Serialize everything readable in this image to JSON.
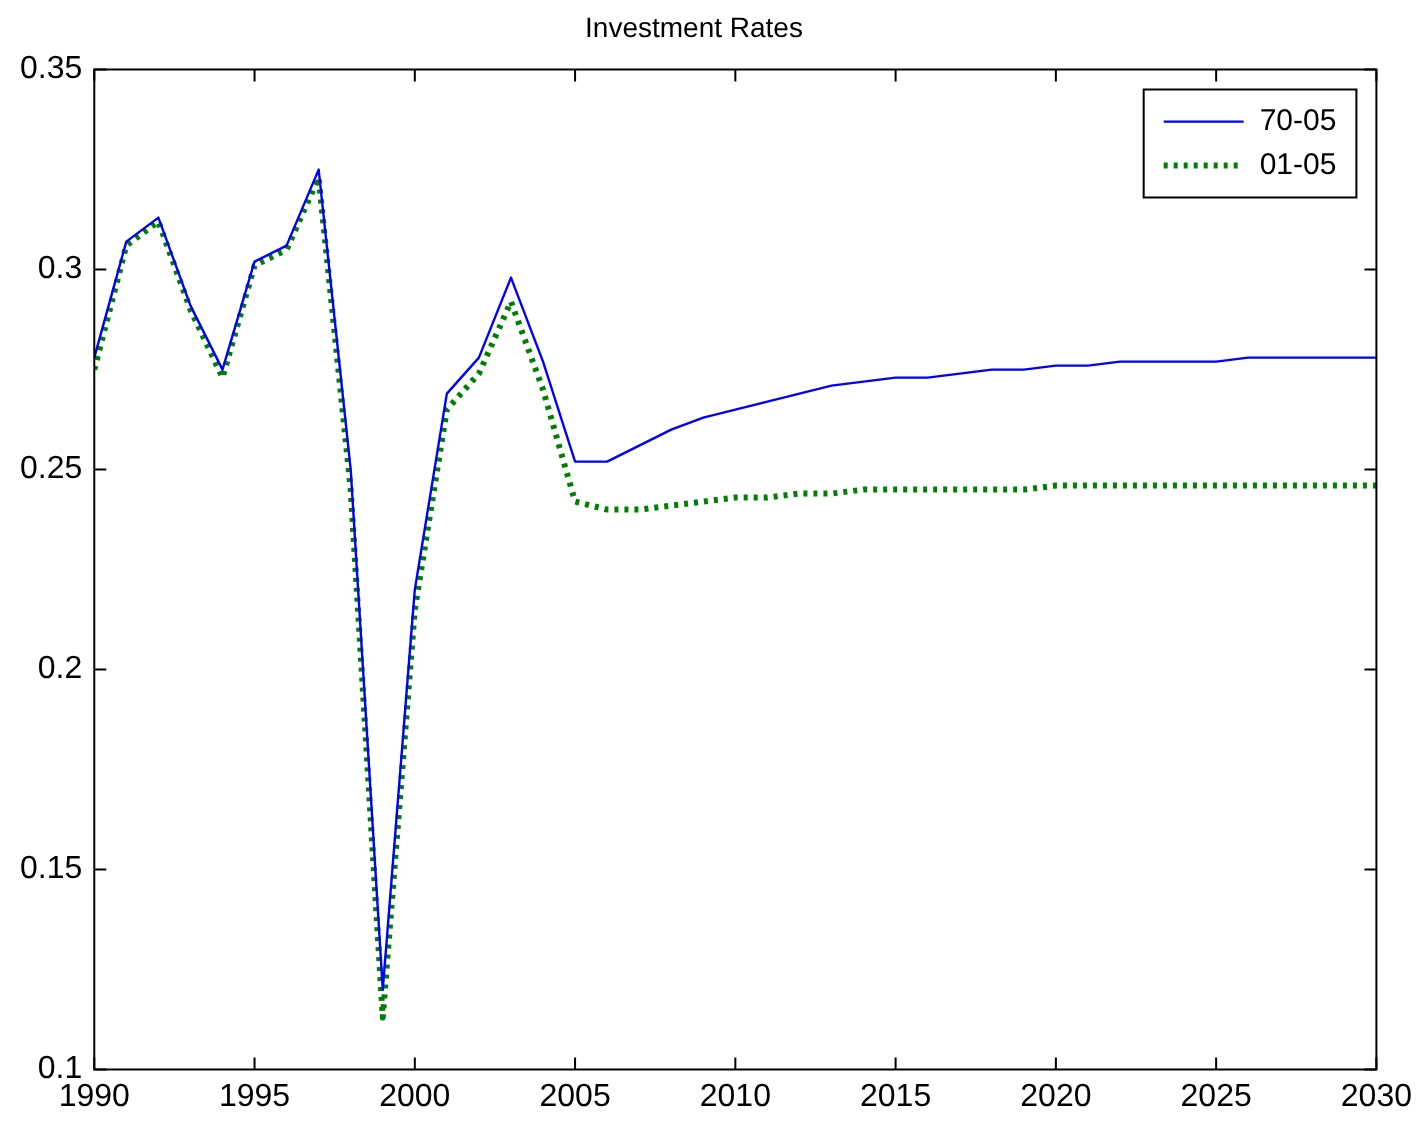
{
  "chart_data": {
    "type": "line",
    "title": "Investment Rates",
    "x": [
      1990,
      1991,
      1992,
      1993,
      1994,
      1995,
      1996,
      1997,
      1998,
      1999,
      2000,
      2001,
      2002,
      2003,
      2004,
      2005,
      2006,
      2007,
      2008,
      2009,
      2010,
      2011,
      2012,
      2013,
      2014,
      2015,
      2016,
      2017,
      2018,
      2019,
      2020,
      2021,
      2022,
      2023,
      2024,
      2025,
      2026,
      2027,
      2028,
      2029,
      2030
    ],
    "series": [
      {
        "name": "70-05",
        "color": "#0000ff",
        "line_style": "solid",
        "values": [
          0.278,
          0.307,
          0.313,
          0.291,
          0.275,
          0.302,
          0.306,
          0.325,
          0.25,
          0.12,
          0.22,
          0.269,
          0.278,
          0.298,
          0.277,
          0.252,
          0.252,
          0.256,
          0.26,
          0.263,
          0.265,
          0.267,
          0.269,
          0.271,
          0.272,
          0.273,
          0.273,
          0.274,
          0.275,
          0.275,
          0.276,
          0.276,
          0.277,
          0.277,
          0.277,
          0.277,
          0.278,
          0.278,
          0.278,
          0.278,
          0.278
        ]
      },
      {
        "name": "01-05",
        "color": "#008000",
        "line_style": "dotted",
        "values": [
          0.275,
          0.306,
          0.312,
          0.29,
          0.273,
          0.301,
          0.305,
          0.323,
          0.245,
          0.113,
          0.215,
          0.265,
          0.274,
          0.292,
          0.27,
          0.242,
          0.24,
          0.24,
          0.241,
          0.242,
          0.243,
          0.243,
          0.244,
          0.244,
          0.245,
          0.245,
          0.245,
          0.245,
          0.245,
          0.245,
          0.246,
          0.246,
          0.246,
          0.246,
          0.246,
          0.246,
          0.246,
          0.246,
          0.246,
          0.246,
          0.246
        ]
      }
    ],
    "xlim": [
      1990,
      2030
    ],
    "xticks": [
      1990,
      1995,
      2000,
      2005,
      2010,
      2015,
      2020,
      2025,
      2030
    ],
    "ylim": [
      0.1,
      0.35
    ],
    "yticks": [
      0.1,
      0.15,
      0.2,
      0.25,
      0.3,
      0.35
    ],
    "grid": false,
    "legend": "top right",
    "marker": "none"
  }
}
